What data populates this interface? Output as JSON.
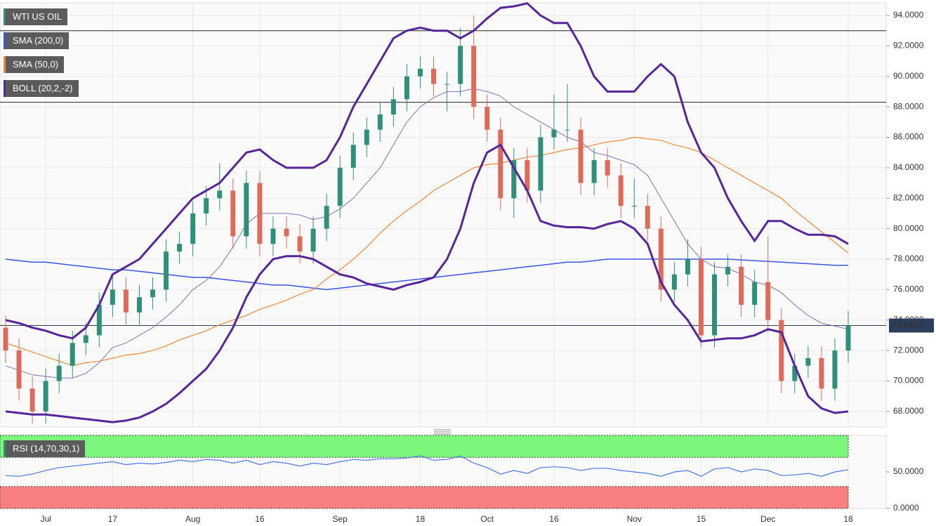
{
  "chart_data": [
    {
      "type": "candlestick",
      "title": "WTI US OIL",
      "categories": [
        null,
        null,
        null,
        "Jul",
        null,
        null,
        null,
        null,
        "17",
        null,
        null,
        null,
        null,
        null,
        "Aug",
        null,
        null,
        null,
        null,
        "16",
        null,
        null,
        null,
        null,
        null,
        "Sep",
        null,
        null,
        null,
        null,
        null,
        "18",
        null,
        null,
        null,
        null,
        "Oct",
        null,
        null,
        null,
        null,
        "16",
        null,
        null,
        null,
        null,
        null,
        "Nov",
        null,
        null,
        null,
        null,
        "15",
        null,
        null,
        null,
        null,
        "Dec",
        null,
        null,
        null,
        null,
        null,
        "18"
      ],
      "open": [
        73.5,
        72,
        69.5,
        68,
        70,
        71,
        72.5,
        73,
        75,
        76,
        74.5,
        75.5,
        76,
        78.5,
        79,
        81,
        82,
        82.5,
        79.5,
        83,
        79,
        80,
        79.5,
        78.5,
        80,
        81.5,
        84,
        85.5,
        86.5,
        87.5,
        88.5,
        90,
        90.5,
        89.5,
        89.5,
        92,
        88,
        86.5,
        82,
        84.5,
        82.5,
        86,
        86.5,
        86.5,
        83,
        84.5,
        83.5,
        81.5,
        81.5,
        80,
        76,
        77,
        78,
        73,
        77,
        77.5,
        75,
        76.5,
        74,
        70,
        71,
        71.5,
        69.5,
        72
      ],
      "high": [
        74.3,
        72.8,
        70.3,
        70.8,
        71.8,
        73.3,
        73.8,
        75.8,
        77,
        76.8,
        76.3,
        76.8,
        79.3,
        79.8,
        81.8,
        82.8,
        84.3,
        83.3,
        83.8,
        83.8,
        80.8,
        80.8,
        80.3,
        80.8,
        82.3,
        84.8,
        86.3,
        87.3,
        88.3,
        89.3,
        90.8,
        91.3,
        91.3,
        90.3,
        93.2,
        94,
        88.8,
        87.3,
        85.3,
        85.3,
        86.8,
        88.8,
        89.5,
        87.3,
        85.3,
        85.3,
        84.3,
        83.3,
        82.3,
        80.8,
        77.8,
        79.3,
        78.8,
        77.8,
        78.3,
        78.3,
        77.3,
        79.5,
        74.8,
        71.8,
        72.3,
        72.3,
        72.8,
        74.6
      ],
      "low": [
        71.2,
        68.7,
        67.2,
        67.2,
        69.2,
        70.2,
        71.7,
        72.2,
        74.2,
        73.7,
        73.7,
        74.7,
        75.2,
        77.7,
        78.2,
        80.2,
        81.2,
        78.7,
        78.7,
        78.2,
        78.2,
        78.7,
        77.7,
        77.7,
        79.2,
        80.7,
        83.2,
        84.7,
        85.7,
        86.7,
        87.7,
        89.2,
        88.7,
        87.7,
        88.7,
        87.2,
        85.7,
        81.2,
        80.7,
        81.7,
        81.7,
        85.2,
        85.7,
        82.2,
        82.2,
        82.7,
        80.7,
        80.7,
        79.2,
        75.2,
        75.2,
        76.2,
        72.2,
        72.2,
        76.2,
        74.2,
        74.2,
        73.2,
        69.2,
        69.2,
        70.2,
        68.7,
        68.7,
        71.2
      ],
      "close": [
        72,
        69.5,
        68,
        70,
        71,
        72.5,
        73,
        75,
        76,
        74.5,
        75.5,
        76,
        78.5,
        79,
        81,
        82,
        82.5,
        79.5,
        83,
        79,
        80,
        79.5,
        78.5,
        80,
        81.5,
        84,
        85.5,
        86.5,
        87.5,
        88.5,
        90,
        90.5,
        89.5,
        89.5,
        92,
        88,
        86.5,
        82,
        84.5,
        82.5,
        86,
        86.5,
        86.5,
        83,
        84.5,
        83.5,
        81.5,
        81.5,
        80,
        76,
        77,
        78,
        73,
        77,
        77.5,
        75,
        76.5,
        74,
        70,
        71,
        71.5,
        69.5,
        72,
        73.642
      ],
      "up_color": "#2f8f78",
      "down_color": "#dd6b5b",
      "series": [
        {
          "name": "SMA (200,0)",
          "color": "#3a55e0",
          "values": [
            78,
            77.9,
            77.8,
            77.8,
            77.7,
            77.6,
            77.5,
            77.4,
            77.3,
            77.3,
            77.2,
            77.1,
            77,
            76.9,
            76.8,
            76.8,
            76.7,
            76.6,
            76.5,
            76.4,
            76.3,
            76.3,
            76.2,
            76.1,
            76,
            76.1,
            76.2,
            76.3,
            76.4,
            76.5,
            76.6,
            76.7,
            76.8,
            76.9,
            77,
            77.1,
            77.2,
            77.3,
            77.4,
            77.5,
            77.6,
            77.7,
            77.8,
            77.8,
            77.9,
            78,
            78,
            78,
            78,
            78,
            78,
            78,
            78,
            78,
            78,
            77.95,
            77.9,
            77.85,
            77.8,
            77.75,
            77.7,
            77.65,
            77.6,
            77.6
          ]
        },
        {
          "name": "SMA (50,0)",
          "color": "#f0883a",
          "values": [
            72.5,
            72.2,
            71.9,
            71.6,
            71.3,
            71,
            71.2,
            71.3,
            71.5,
            71.7,
            71.8,
            72,
            72.3,
            72.7,
            73,
            73.3,
            73.7,
            74,
            74.3,
            74.7,
            75,
            75.3,
            75.7,
            76,
            76.7,
            77.3,
            78,
            78.8,
            79.7,
            80.5,
            81.2,
            81.8,
            82.5,
            83,
            83.5,
            84,
            84.2,
            84.3,
            84.5,
            84.7,
            84.8,
            85,
            85.2,
            85.3,
            85.5,
            85.7,
            85.8,
            86,
            85.9,
            85.8,
            85.5,
            85.3,
            85,
            84.5,
            84,
            83.5,
            83,
            82.5,
            82,
            81.2,
            80.5,
            79.8,
            79.1,
            78.4
          ]
        },
        {
          "name": "BOLL (20,2,-2)",
          "color": "#56259a",
          "mid_color": "#8070c0",
          "values": [
            71,
            70.7,
            70.4,
            70.3,
            70.2,
            70.2,
            70.5,
            71.2,
            72.2,
            72.5,
            73,
            73.5,
            74.2,
            75,
            76,
            76.6,
            77.5,
            78.8,
            80.3,
            81,
            81,
            81,
            80.9,
            80.6,
            80.8,
            81.3,
            82,
            83,
            84,
            85.5,
            87,
            88,
            88.6,
            89,
            89,
            89.2,
            89,
            88.7,
            88,
            87.5,
            87,
            86.5,
            86,
            85.7,
            85,
            84.8,
            84.5,
            84.2,
            83.5,
            82,
            80.5,
            79,
            78,
            77.5,
            77.4,
            77,
            76.5,
            76.3,
            75.8,
            75,
            74.3,
            73.8,
            73.6,
            73.4
          ],
          "upper": [
            74,
            73.8,
            73.5,
            73.3,
            73,
            72.8,
            73.5,
            75,
            77,
            77.5,
            78,
            79,
            80,
            81,
            82,
            82.5,
            83,
            84,
            85,
            85.2,
            84.5,
            84,
            84,
            84,
            84.5,
            86,
            88,
            89.5,
            91,
            92.5,
            93,
            93.2,
            93,
            93,
            92.5,
            93,
            93.8,
            94.5,
            94.6,
            94.8,
            94,
            93.5,
            93.5,
            92,
            90,
            89,
            89,
            89,
            90,
            90.8,
            90,
            87,
            85,
            84,
            82,
            80.5,
            79.2,
            80.5,
            80.5,
            80,
            79.6,
            79.6,
            79.5,
            79
          ],
          "lower": [
            68,
            67.9,
            67.8,
            67.8,
            67.7,
            67.6,
            67.5,
            67.4,
            67.3,
            67.4,
            67.6,
            68,
            68.5,
            69.2,
            70,
            70.8,
            72,
            73.5,
            75.5,
            77,
            78,
            78.2,
            78.2,
            78,
            77.5,
            77,
            76.8,
            76.4,
            76.2,
            76,
            76.3,
            76.5,
            76.8,
            78,
            80,
            83,
            85,
            85.5,
            84,
            82.5,
            80.5,
            80.2,
            80.1,
            80.1,
            80,
            80.3,
            80.5,
            80,
            79,
            76.5,
            75,
            74,
            72.6,
            72.7,
            72.8,
            72.8,
            73,
            73.4,
            73.2,
            71,
            69,
            68.2,
            67.9,
            68
          ]
        }
      ],
      "levels": [
        93,
        88.3
      ],
      "last": {
        "value": 73.642,
        "label": "73.6420"
      },
      "ylim": [
        66.98,
        94.83
      ],
      "yticks": [
        {
          "value": 68,
          "label": "68.0000"
        },
        {
          "value": 70,
          "label": "70.0000"
        },
        {
          "value": 72,
          "label": "72.0000"
        },
        {
          "value": 74,
          "label": "74.0000"
        },
        {
          "value": 76,
          "label": "76.0000"
        },
        {
          "value": 78,
          "label": "78.0000"
        },
        {
          "value": 80,
          "label": "80.0000"
        },
        {
          "value": 82,
          "label": "82.0000"
        },
        {
          "value": 84,
          "label": "84.0000"
        },
        {
          "value": 86,
          "label": "86.0000"
        },
        {
          "value": 88,
          "label": "88.0000"
        },
        {
          "value": 90,
          "label": "90.0000"
        },
        {
          "value": 92,
          "label": "92.0000"
        },
        {
          "value": 94,
          "label": "94.0000"
        }
      ],
      "grid": true
    },
    {
      "type": "line",
      "title": "RSI (14,70,30,1)",
      "color": "#4a78e0",
      "values": [
        45,
        44,
        47,
        52,
        56,
        58,
        60,
        62,
        64,
        60,
        62,
        61,
        63,
        66,
        64,
        67,
        66,
        62,
        66,
        60,
        64,
        62,
        58,
        62,
        60,
        64,
        67,
        66,
        68,
        68,
        69,
        72,
        66,
        67,
        72,
        62,
        56,
        47,
        52,
        48,
        56,
        57,
        56,
        52,
        55,
        55,
        52,
        50,
        48,
        44,
        50,
        52,
        44,
        54,
        56,
        50,
        54,
        52,
        45,
        46,
        48,
        44,
        50,
        53
      ],
      "overbought": 70,
      "oversold": 30,
      "overbought_color": "#7cf77c",
      "oversold_color": "#f98080",
      "ylim": [
        0,
        100
      ],
      "yticks": [
        {
          "value": 50,
          "label": "50.0000"
        },
        {
          "value": 0,
          "label": "0.0000"
        }
      ]
    }
  ]
}
